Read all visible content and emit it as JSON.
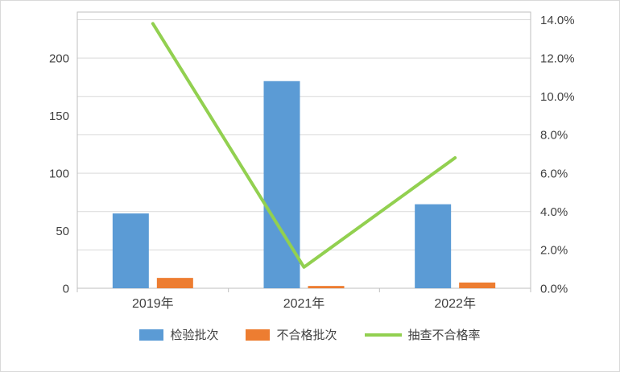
{
  "chart_data": {
    "type": "bar",
    "subtype": "combo-bar-line",
    "title": "",
    "categories": [
      "2019年",
      "2021年",
      "2022年"
    ],
    "series": [
      {
        "name": "检验批次",
        "type": "bar",
        "axis": "left",
        "color": "#5b9bd5",
        "values": [
          65,
          180,
          73
        ]
      },
      {
        "name": "不合格批次",
        "type": "bar",
        "axis": "left",
        "color": "#ed7d31",
        "values": [
          9,
          2,
          5
        ]
      },
      {
        "name": "抽查不合格率",
        "type": "line",
        "axis": "right",
        "color": "#92d050",
        "unit": "%",
        "values": [
          13.8,
          1.1,
          6.8
        ]
      }
    ],
    "left_axis": {
      "min": 0,
      "max": 240,
      "ticks": [
        0,
        50,
        100,
        150,
        200
      ]
    },
    "right_axis": {
      "min": 0,
      "max": 14.4,
      "tick_values": [
        0,
        2,
        4,
        6,
        8,
        10,
        12,
        14
      ],
      "tick_labels": [
        "0.0%",
        "2.0%",
        "4.0%",
        "6.0%",
        "8.0%",
        "10.0%",
        "12.0%",
        "14.0%"
      ]
    },
    "grid": true,
    "legend_position": "bottom"
  },
  "colors": {
    "grid": "#d9d9d9",
    "plot_border": "#bfbfbf",
    "axis_text": "#404040",
    "background": "#ffffff"
  }
}
